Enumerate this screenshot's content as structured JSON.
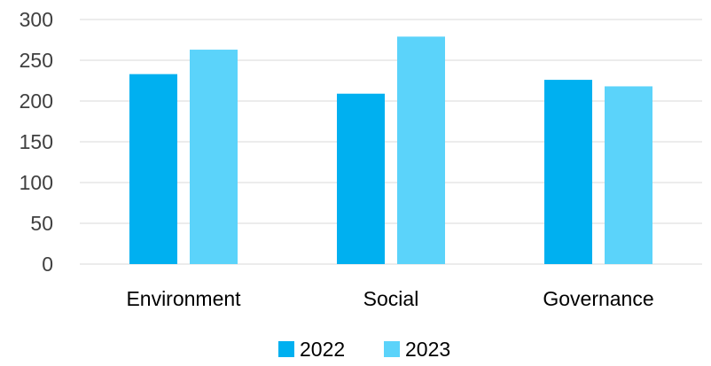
{
  "chart_data": {
    "type": "bar",
    "categories": [
      "Environment",
      "Social",
      "Governance"
    ],
    "series": [
      {
        "name": "2022",
        "color": "#00B0F0",
        "values": [
          233,
          209,
          226
        ]
      },
      {
        "name": "2023",
        "color": "#5BD3FA",
        "values": [
          263,
          279,
          218
        ]
      }
    ],
    "ylim": [
      0,
      300
    ],
    "yticks": [
      0,
      50,
      100,
      150,
      200,
      250,
      300
    ],
    "grid": true,
    "legend_position": "bottom"
  }
}
